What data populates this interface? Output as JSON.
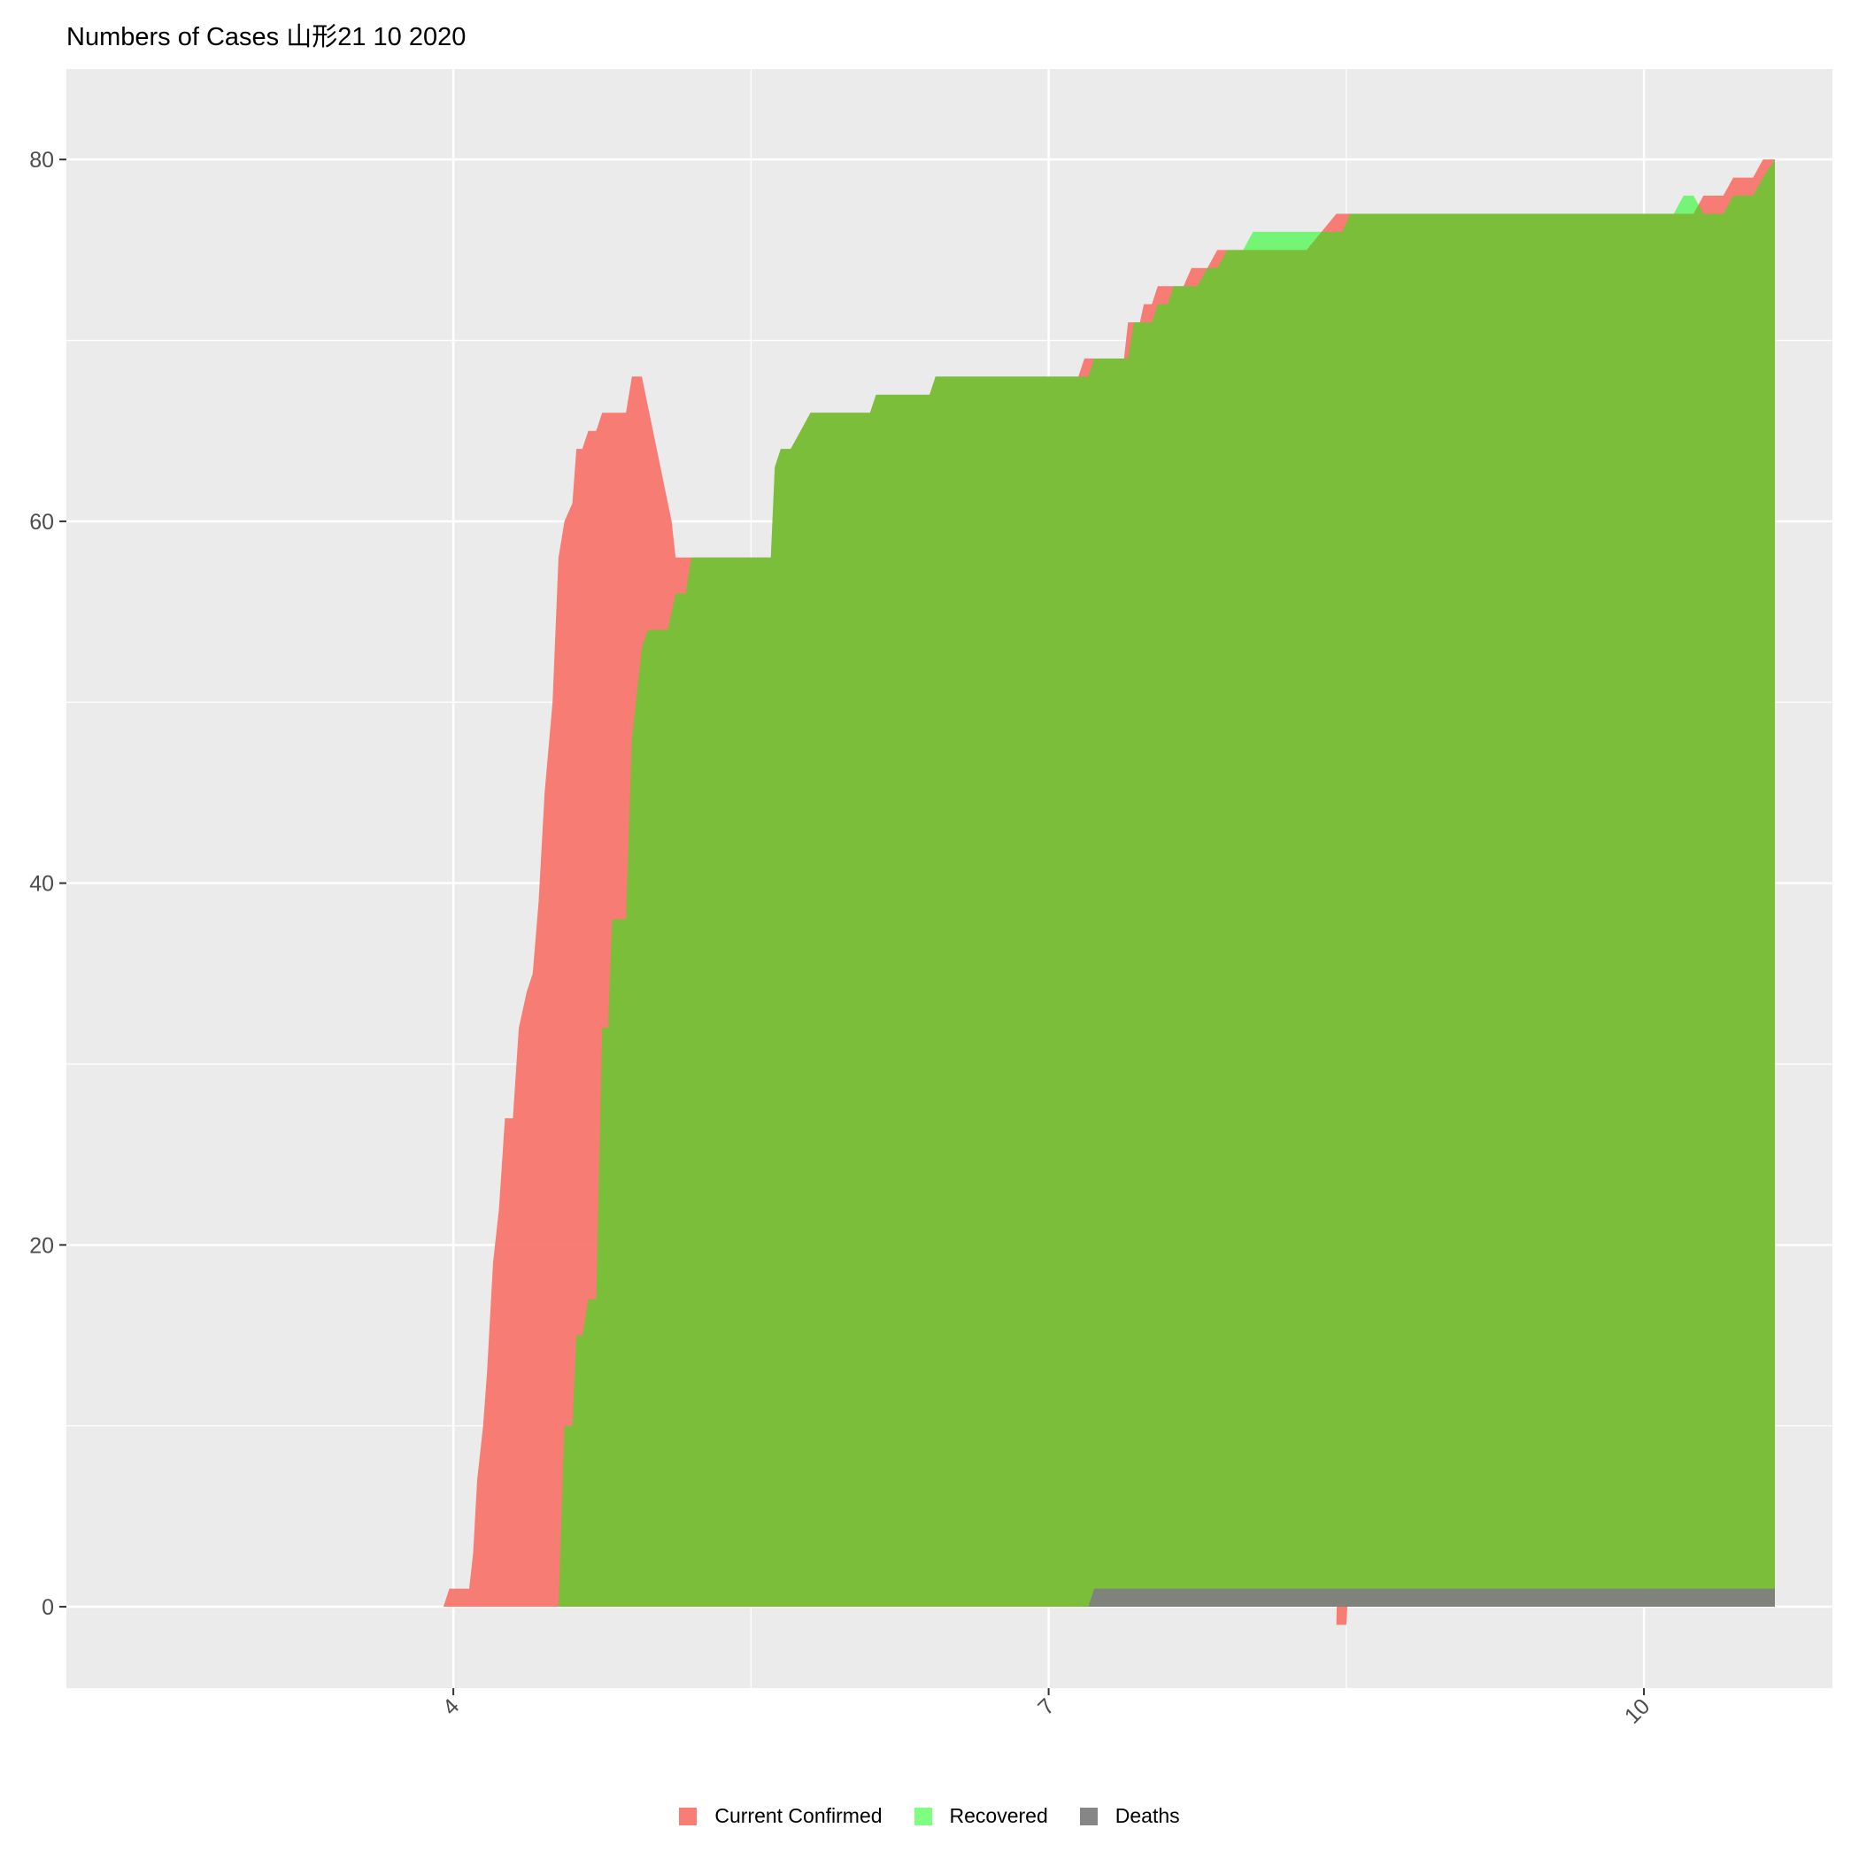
{
  "chart_data": {
    "type": "area",
    "title": "Numbers of Cases  山形21 10 2020",
    "xlabel": "",
    "ylabel": "",
    "x_ticks": [
      4,
      7,
      10
    ],
    "x_tick_labels": [
      "4",
      "7",
      "10"
    ],
    "y_ticks": [
      0,
      20,
      40,
      60,
      80
    ],
    "y_tick_labels": [
      "0",
      "20",
      "40",
      "60",
      "80"
    ],
    "xlim": [
      2.05,
      10.95
    ],
    "ylim": [
      -4.5,
      85
    ],
    "grid": true,
    "legend_position": "bottom",
    "series": [
      {
        "name": "Current Confirmed",
        "color": "#F8766D",
        "points": [
          [
            3.95,
            0
          ],
          [
            3.98,
            1
          ],
          [
            4.08,
            1
          ],
          [
            4.1,
            3
          ],
          [
            4.12,
            7
          ],
          [
            4.15,
            10
          ],
          [
            4.17,
            13
          ],
          [
            4.2,
            19
          ],
          [
            4.23,
            22
          ],
          [
            4.26,
            27
          ],
          [
            4.3,
            27
          ],
          [
            4.33,
            32
          ],
          [
            4.37,
            34
          ],
          [
            4.4,
            35
          ],
          [
            4.43,
            39
          ],
          [
            4.46,
            45
          ],
          [
            4.5,
            50
          ],
          [
            4.53,
            58
          ],
          [
            4.56,
            60
          ],
          [
            4.6,
            61
          ],
          [
            4.62,
            64
          ],
          [
            4.65,
            64
          ],
          [
            4.68,
            65
          ],
          [
            4.72,
            65
          ],
          [
            4.75,
            66
          ],
          [
            4.87,
            66
          ],
          [
            4.9,
            68
          ],
          [
            4.95,
            68
          ],
          [
            5.1,
            60
          ],
          [
            5.12,
            58
          ],
          [
            5.17,
            58
          ],
          [
            5.6,
            58
          ],
          [
            5.62,
            63
          ],
          [
            5.65,
            64
          ],
          [
            5.7,
            64
          ],
          [
            5.75,
            65
          ],
          [
            5.8,
            66
          ],
          [
            6.1,
            66
          ],
          [
            6.13,
            67
          ],
          [
            6.4,
            67
          ],
          [
            6.43,
            68
          ],
          [
            7.15,
            68
          ],
          [
            7.18,
            69
          ],
          [
            7.38,
            69
          ],
          [
            7.4,
            71
          ],
          [
            7.46,
            71
          ],
          [
            7.48,
            72
          ],
          [
            7.52,
            72
          ],
          [
            7.55,
            73
          ],
          [
            7.68,
            73
          ],
          [
            7.72,
            74
          ],
          [
            7.8,
            74
          ],
          [
            7.85,
            75
          ],
          [
            8.3,
            75
          ],
          [
            8.45,
            77
          ],
          [
            8.45,
            77
          ],
          [
            8.95,
            77
          ],
          [
            8.5,
            -1
          ],
          [
            8.45,
            -1
          ],
          [
            8.6,
            77
          ],
          [
            10.0,
            77
          ],
          [
            10.15,
            77
          ],
          [
            10.18,
            77
          ],
          [
            10.25,
            77
          ],
          [
            10.3,
            78
          ],
          [
            10.4,
            78
          ],
          [
            10.45,
            79
          ],
          [
            10.55,
            79
          ],
          [
            10.6,
            80
          ],
          [
            10.66,
            80
          ]
        ]
      },
      {
        "name": "Recovered",
        "color": "#00FF00",
        "points": [
          [
            4.53,
            0
          ],
          [
            4.56,
            10
          ],
          [
            4.6,
            10
          ],
          [
            4.62,
            15
          ],
          [
            4.65,
            15
          ],
          [
            4.68,
            17
          ],
          [
            4.72,
            17
          ],
          [
            4.75,
            32
          ],
          [
            4.78,
            32
          ],
          [
            4.8,
            38
          ],
          [
            4.87,
            38
          ],
          [
            4.9,
            48
          ],
          [
            4.92,
            50
          ],
          [
            4.95,
            53
          ],
          [
            4.98,
            54
          ],
          [
            5.08,
            54
          ],
          [
            5.12,
            56
          ],
          [
            5.17,
            56
          ],
          [
            5.2,
            58
          ],
          [
            5.6,
            58
          ],
          [
            5.62,
            63
          ],
          [
            5.65,
            64
          ],
          [
            5.7,
            64
          ],
          [
            5.75,
            65
          ],
          [
            5.8,
            66
          ],
          [
            6.1,
            66
          ],
          [
            6.13,
            67
          ],
          [
            6.4,
            67
          ],
          [
            6.43,
            68
          ],
          [
            7.2,
            68
          ],
          [
            7.23,
            69
          ],
          [
            7.4,
            69
          ],
          [
            7.43,
            71
          ],
          [
            7.52,
            71
          ],
          [
            7.55,
            72
          ],
          [
            7.6,
            72
          ],
          [
            7.63,
            73
          ],
          [
            7.75,
            73
          ],
          [
            7.8,
            74
          ],
          [
            7.85,
            74
          ],
          [
            7.9,
            75
          ],
          [
            7.98,
            75
          ],
          [
            8.03,
            76
          ],
          [
            8.48,
            76
          ],
          [
            8.52,
            77
          ],
          [
            10.15,
            77
          ],
          [
            10.2,
            78
          ],
          [
            10.25,
            78
          ],
          [
            10.3,
            77
          ],
          [
            10.4,
            77
          ],
          [
            10.45,
            78
          ],
          [
            10.55,
            78
          ],
          [
            10.6,
            79
          ],
          [
            10.66,
            80
          ]
        ]
      },
      {
        "name": "Deaths",
        "color": "#7F7F7F",
        "points": [
          [
            7.2,
            0
          ],
          [
            7.23,
            1
          ],
          [
            10.66,
            1
          ]
        ]
      }
    ]
  }
}
